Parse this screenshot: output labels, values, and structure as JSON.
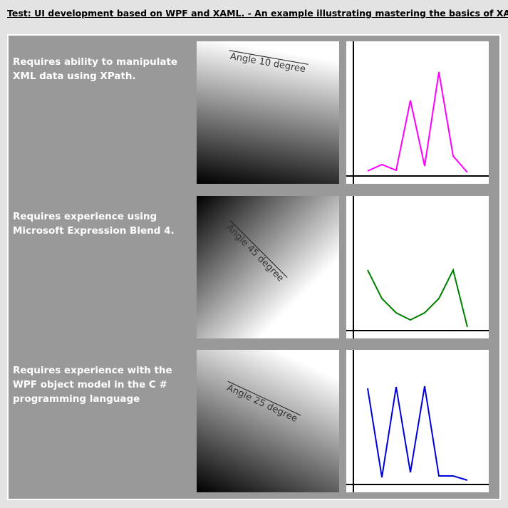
{
  "header": {
    "title": "Test: UI development based on WPF and XAML. - An example illustrating mastering the basics of XAML."
  },
  "rows": [
    {
      "text": "Requires ability to manipulate XML data using XPath.",
      "gradient_label": "Angle 10 degree",
      "chart": {
        "type": "line",
        "color": "#ff00ff",
        "values": [
          7,
          16,
          8,
          106,
          14,
          146,
          28,
          5
        ]
      }
    },
    {
      "text": "Requires experience using Microsoft Expression Blend 4.",
      "gradient_label": "Angle 45 degree",
      "chart": {
        "type": "line",
        "color": "#008000",
        "values": [
          85,
          45,
          25,
          15,
          25,
          45,
          85,
          5
        ]
      }
    },
    {
      "text": "Requires experience with the WPF object model in the C # programming language",
      "gradient_label": "Angle 25 degree",
      "chart": {
        "type": "line",
        "color": "#0000dd",
        "values": [
          135,
          10,
          137,
          17,
          138,
          12,
          12,
          6
        ]
      }
    }
  ]
}
